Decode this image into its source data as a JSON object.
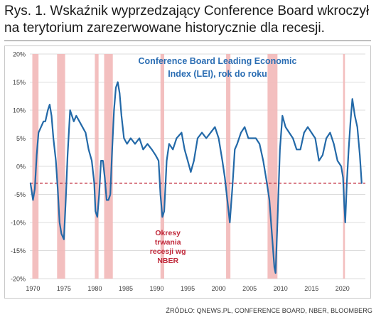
{
  "figure": {
    "title_line1": "Rys. 1. Wskaźnik wyprzedzający Conference Board wkroczył",
    "title_line2": "na terytorium zarezerwowane historycznie dla recesji.",
    "source": "ŹRÓDŁO: QNEWS.PL, CONFERENCE BOARD, NBER, BLOOMBERG"
  },
  "chart_data": {
    "type": "line",
    "title_line1": "Conference Board Leading Economic",
    "title_line2": "Index (LEI), rok do roku",
    "annotation_lines": [
      "Okresy",
      "trwania",
      "recesji wg",
      "NBER"
    ],
    "xlim": [
      1969.5,
      2023.7
    ],
    "ylim": [
      -20,
      20
    ],
    "x_ticks": [
      1970,
      1975,
      1980,
      1985,
      1990,
      1995,
      2000,
      2005,
      2010,
      2015,
      2020
    ],
    "y_ticks": [
      -20,
      -15,
      -10,
      -5,
      0,
      5,
      10,
      15,
      20
    ],
    "y_tick_labels": [
      "-20%",
      "-15%",
      "-10%",
      "-5%",
      "0%",
      "5%",
      "10%",
      "15%",
      "20%"
    ],
    "grid": "horizontal",
    "recessions": [
      {
        "start": 1969.9,
        "end": 1970.9
      },
      {
        "start": 1973.9,
        "end": 1975.2
      },
      {
        "start": 1980.0,
        "end": 1980.6
      },
      {
        "start": 1981.5,
        "end": 1982.9
      },
      {
        "start": 1990.6,
        "end": 1991.2
      },
      {
        "start": 2001.2,
        "end": 2001.9
      },
      {
        "start": 2007.9,
        "end": 2009.5
      },
      {
        "start": 2020.1,
        "end": 2020.4
      }
    ],
    "threshold": -3,
    "series": [
      {
        "color": "#2369a8",
        "x": [
          1969.6,
          1970.0,
          1970.3,
          1970.6,
          1970.9,
          1971.3,
          1971.7,
          1972.0,
          1972.4,
          1972.7,
          1973.0,
          1973.3,
          1973.7,
          1974.0,
          1974.3,
          1974.6,
          1975.0,
          1975.3,
          1975.6,
          1976.0,
          1976.3,
          1976.6,
          1977.0,
          1977.5,
          1978.0,
          1978.5,
          1979.0,
          1979.5,
          1979.9,
          1980.1,
          1980.4,
          1980.7,
          1981.0,
          1981.3,
          1981.6,
          1981.9,
          1982.2,
          1982.5,
          1982.8,
          1983.1,
          1983.4,
          1983.7,
          1984.0,
          1984.3,
          1984.7,
          1985.2,
          1985.8,
          1986.5,
          1987.2,
          1987.8,
          1988.5,
          1989.2,
          1989.8,
          1990.3,
          1990.6,
          1990.9,
          1991.2,
          1991.6,
          1992.0,
          1992.6,
          1993.2,
          1994.0,
          1994.5,
          1995.0,
          1995.5,
          1996.0,
          1996.6,
          1997.3,
          1998.0,
          1998.7,
          1999.4,
          2000.0,
          2000.6,
          2001.0,
          2001.4,
          2001.8,
          2002.2,
          2002.6,
          2003.0,
          2003.6,
          2004.2,
          2004.8,
          2005.4,
          2006.0,
          2006.6,
          2007.2,
          2007.8,
          2008.2,
          2008.6,
          2009.0,
          2009.2,
          2009.5,
          2009.9,
          2010.3,
          2010.8,
          2011.4,
          2012.0,
          2012.6,
          2013.2,
          2013.8,
          2014.4,
          2015.0,
          2015.6,
          2016.2,
          2016.8,
          2017.4,
          2018.0,
          2018.6,
          2019.2,
          2019.8,
          2020.1,
          2020.3,
          2020.45,
          2020.7,
          2021.0,
          2021.3,
          2021.6,
          2022.0,
          2022.4,
          2022.8,
          2023.1
        ],
        "y": [
          -3,
          -6,
          -4,
          2,
          6,
          7,
          8,
          8,
          10,
          11,
          9,
          5,
          1,
          -4,
          -10,
          -12,
          -13,
          -6,
          2,
          10,
          9,
          8,
          9,
          8,
          7,
          6,
          3,
          1,
          -3,
          -8,
          -9,
          -5,
          1,
          1,
          -2,
          -6,
          -6,
          -5,
          3,
          10,
          14,
          15,
          13,
          9,
          5,
          4,
          5,
          4,
          5,
          3,
          4,
          3,
          2,
          1,
          -5,
          -9,
          -8,
          1,
          4,
          3,
          5,
          6,
          3,
          1,
          -1,
          1,
          5,
          6,
          5,
          6,
          7,
          5,
          1,
          -2,
          -6,
          -10,
          -4,
          3,
          4,
          6,
          7,
          5,
          5,
          5,
          4,
          1,
          -3,
          -6,
          -12,
          -18,
          -19,
          -10,
          3,
          9,
          7,
          6,
          5,
          3,
          3,
          6,
          7,
          6,
          5,
          1,
          2,
          5,
          6,
          4,
          1,
          0,
          -2,
          -7,
          -10,
          -3,
          3,
          8,
          12,
          9,
          7,
          2,
          -3
        ]
      }
    ]
  }
}
